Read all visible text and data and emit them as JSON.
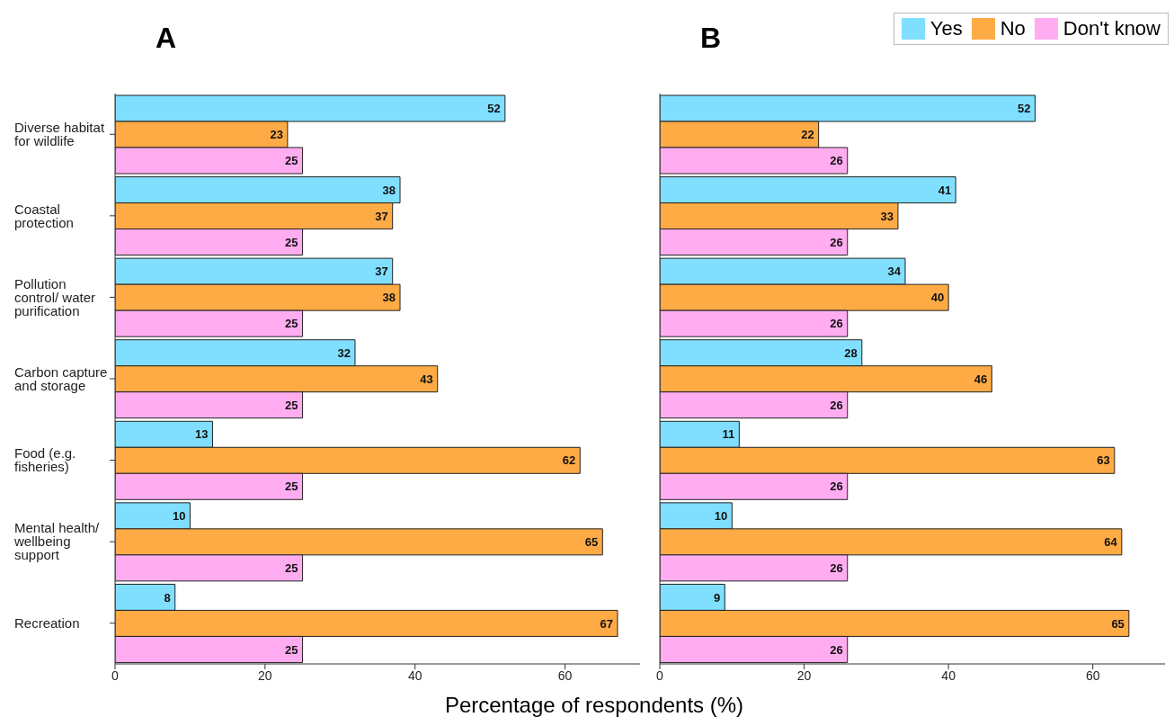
{
  "chart_data": [
    {
      "type": "bar",
      "orientation": "horizontal",
      "title": "A",
      "categories": [
        "Diverse habitat for wildlife",
        "Coastal protection",
        "Pollution control/ water purification",
        "Carbon capture and storage",
        "Food (e.g. fisheries)",
        "Mental health/ wellbeing support",
        "Recreation"
      ],
      "series": [
        {
          "color": "#80dfff",
          "values": [
            52,
            38,
            37,
            32,
            13,
            10,
            8
          ]
        },
        {
          "color": "#ffab45",
          "values": [
            23,
            37,
            38,
            43,
            62,
            65,
            67
          ]
        },
        {
          "color": "#ffadf0",
          "values": [
            25,
            25,
            25,
            25,
            25,
            25,
            25
          ]
        }
      ],
      "xlim": [
        0,
        70
      ],
      "xticks": [
        0,
        20,
        40,
        60
      ],
      "data_labels": true,
      "grid": false,
      "legend": false
    },
    {
      "type": "bar",
      "orientation": "horizontal",
      "title": "B",
      "xlabel": "Percentage of respondents (%)",
      "categories": [
        null,
        null,
        null,
        null,
        null,
        null,
        null
      ],
      "series": [
        {
          "name": "Yes",
          "color": "#80dfff",
          "values": [
            52,
            41,
            34,
            28,
            11,
            10,
            9
          ]
        },
        {
          "name": "No",
          "color": "#ffab45",
          "values": [
            22,
            33,
            40,
            46,
            63,
            64,
            65
          ]
        },
        {
          "name": "Don't know",
          "color": "#ffadf0",
          "values": [
            26,
            26,
            26,
            26,
            26,
            26,
            26
          ]
        }
      ],
      "xlim": [
        0,
        70
      ],
      "xticks": [
        0,
        20,
        40,
        60
      ],
      "data_labels": true,
      "grid": false,
      "legend": "top right",
      "tick_labels": "x"
    }
  ]
}
